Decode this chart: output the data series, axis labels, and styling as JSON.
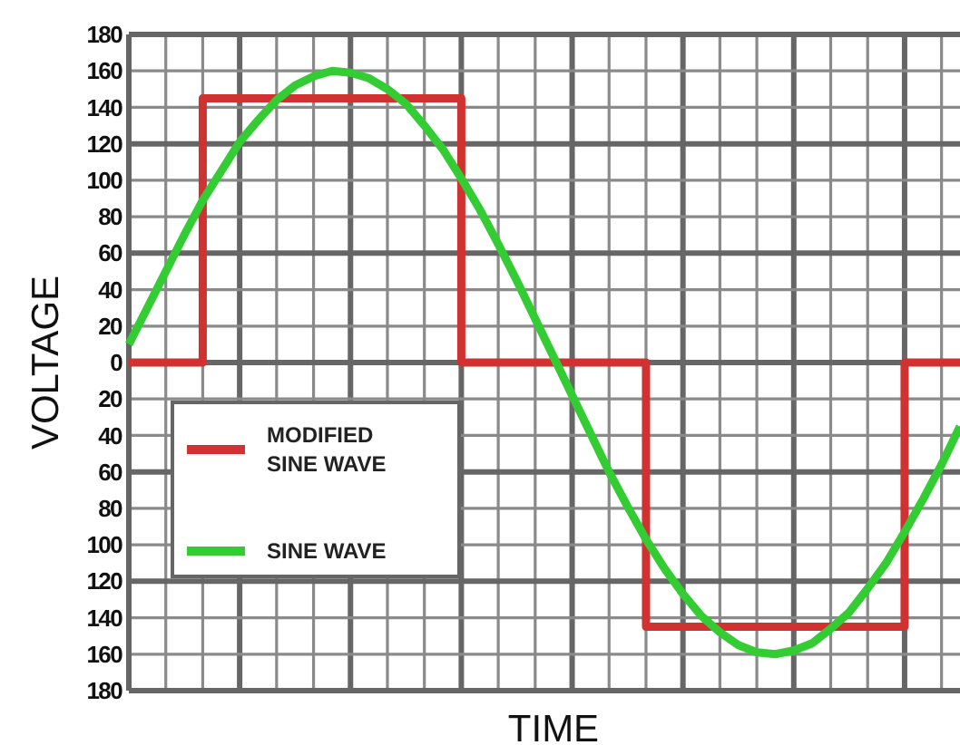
{
  "chart_data": {
    "type": "line",
    "xlabel": "TIME",
    "ylabel": "VOLTAGE",
    "categories": [
      null,
      null,
      null,
      null,
      null,
      null,
      null,
      null,
      null,
      null,
      null,
      null,
      null,
      null,
      null,
      null,
      null,
      null,
      null,
      null,
      null,
      null,
      null,
      null,
      null,
      null,
      null,
      null,
      null,
      null,
      null,
      null,
      null,
      null,
      null,
      null,
      null,
      null,
      null,
      null,
      null,
      null,
      null,
      null,
      null,
      null
    ],
    "series": [
      {
        "name": "MODIFIED SINE WAVE",
        "type": "step",
        "color": "#d03232",
        "values": [
          0,
          0,
          0,
          0,
          145,
          145,
          145,
          145,
          145,
          145,
          145,
          145,
          145,
          145,
          145,
          145,
          145,
          145,
          0,
          0,
          0,
          0,
          0,
          0,
          0,
          0,
          0,
          0,
          -145,
          -145,
          -145,
          -145,
          -145,
          -145,
          -145,
          -145,
          -145,
          -145,
          -145,
          -145,
          -145,
          -145,
          0,
          0,
          0,
          0
        ]
      },
      {
        "name": "SINE WAVE",
        "color": "#33cc33",
        "values": [
          10,
          30,
          50,
          70,
          89,
          105,
          121,
          133,
          144,
          152,
          157,
          160,
          159,
          156,
          150,
          142,
          130,
          117,
          101,
          84,
          65,
          45,
          24,
          3,
          -18,
          -39,
          -60,
          -79,
          -97,
          -113,
          -127,
          -139,
          -148,
          -155,
          -159,
          -160,
          -158,
          -154,
          -146,
          -137,
          -124,
          -110,
          -93,
          -75,
          -56,
          -35
        ]
      }
    ],
    "ylim": [
      -180,
      180
    ],
    "yticks": [
      {
        "value": -180,
        "label": "180"
      },
      {
        "value": -160,
        "label": "160"
      },
      {
        "value": -140,
        "label": "140"
      },
      {
        "value": -120,
        "label": "120"
      },
      {
        "value": -100,
        "label": "100"
      },
      {
        "value": -80,
        "label": "80"
      },
      {
        "value": -60,
        "label": "60"
      },
      {
        "value": -40,
        "label": "40"
      },
      {
        "value": -20,
        "label": "20"
      },
      0,
      20,
      40,
      60,
      80,
      100,
      120,
      140,
      160,
      180
    ],
    "tick_labels": "y",
    "grid": true,
    "legend": "bottom left"
  }
}
